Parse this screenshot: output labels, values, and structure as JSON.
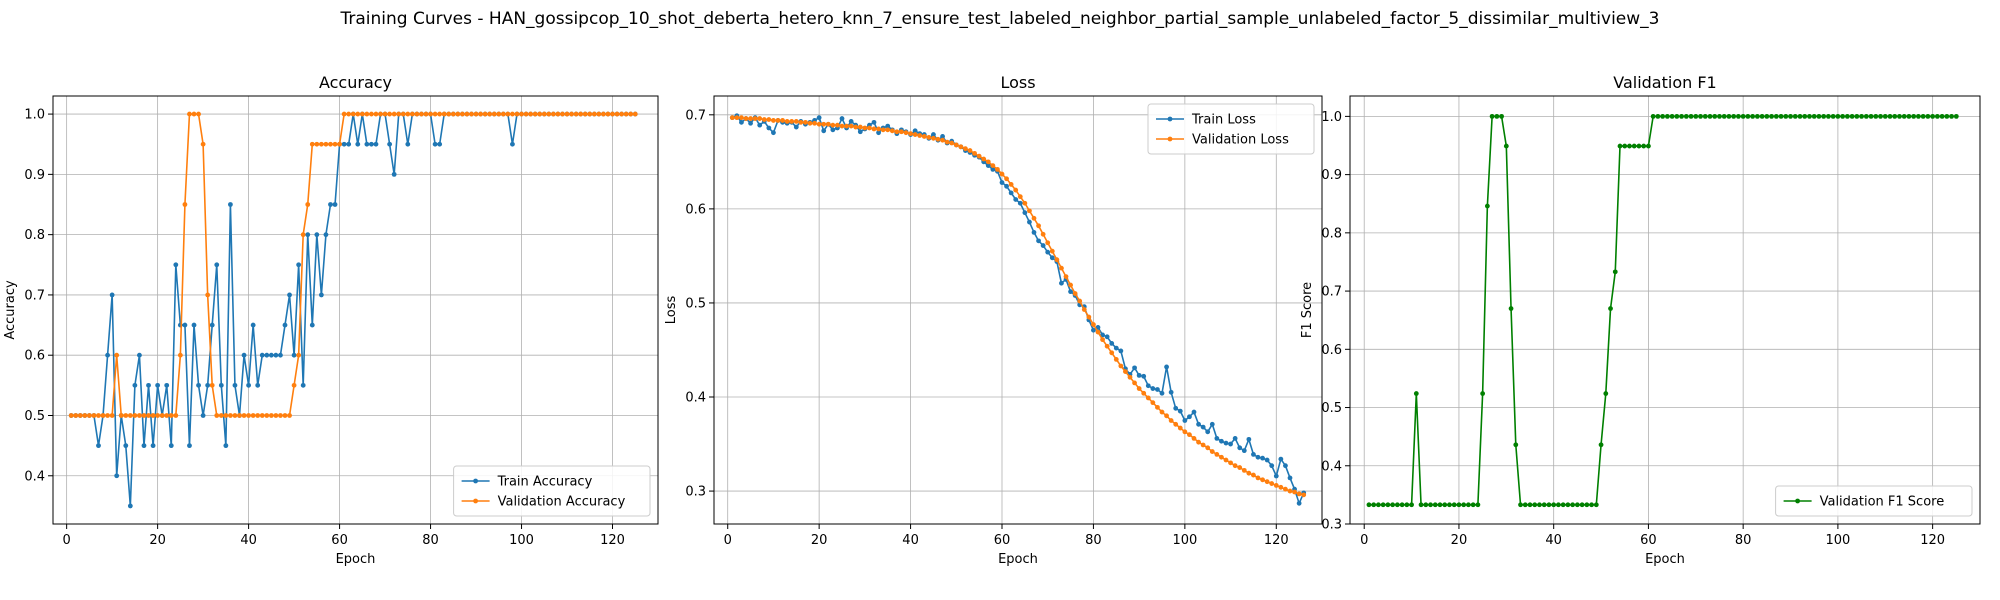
{
  "suptitle": "Training Curves - HAN_gossipcop_10_shot_deberta_hetero_knn_7_ensure_test_labeled_neighbor_partial_sample_unlabeled_factor_5_dissimilar_multiview_3",
  "colors": {
    "train": "#1f77b4",
    "val": "#ff7f0e",
    "f1": "#008000",
    "grid": "#b0b0b0"
  },
  "chart_data": [
    {
      "type": "line",
      "title": "Accuracy",
      "xlabel": "Epoch",
      "ylabel": "Accuracy",
      "xlim": [
        -3,
        130
      ],
      "ylim": [
        0.32,
        1.03
      ],
      "xticks": [
        0,
        20,
        40,
        60,
        80,
        100,
        120
      ],
      "yticks": [
        0.4,
        0.5,
        0.6,
        0.7,
        0.8,
        0.9,
        1.0
      ],
      "ytick_labels": [
        "0.4",
        "0.5",
        "0.6",
        "0.7",
        "0.8",
        "0.9",
        "1.0"
      ],
      "legend_loc": "lower-right",
      "series": [
        {
          "name": "Train Accuracy",
          "color_key": "train",
          "values": [
            0.5,
            0.5,
            0.5,
            0.5,
            0.5,
            0.5,
            0.45,
            0.5,
            0.6,
            0.7,
            0.4,
            0.5,
            0.45,
            0.35,
            0.55,
            0.6,
            0.45,
            0.55,
            0.45,
            0.55,
            0.5,
            0.55,
            0.45,
            0.75,
            0.65,
            0.65,
            0.45,
            0.65,
            0.55,
            0.5,
            0.55,
            0.65,
            0.75,
            0.55,
            0.45,
            0.85,
            0.55,
            0.5,
            0.6,
            0.55,
            0.65,
            0.55,
            0.6,
            0.6,
            0.6,
            0.6,
            0.6,
            0.65,
            0.7,
            0.6,
            0.75,
            0.55,
            0.8,
            0.65,
            0.8,
            0.7,
            0.8,
            0.85,
            0.85,
            0.95,
            0.95,
            0.95,
            1.0,
            0.95,
            1.0,
            0.95,
            0.95,
            0.95,
            1.0,
            1.0,
            0.95,
            0.9,
            1.0,
            1.0,
            0.95,
            1.0,
            1.0,
            1.0,
            1.0,
            1.0,
            0.95,
            0.95,
            1.0,
            1.0,
            1.0,
            1.0,
            1.0,
            1.0,
            1.0,
            1.0,
            1.0,
            1.0,
            1.0,
            1.0,
            1.0,
            1.0,
            1.0,
            0.95,
            1.0,
            1.0,
            1.0,
            1.0,
            1.0,
            1.0,
            1.0,
            1.0,
            1.0,
            1.0,
            1.0,
            1.0,
            1.0,
            1.0,
            1.0,
            1.0,
            1.0,
            1.0,
            1.0,
            1.0,
            1.0,
            1.0,
            1.0,
            1.0,
            1.0,
            1.0,
            1.0
          ]
        },
        {
          "name": "Validation Accuracy",
          "color_key": "val",
          "values": [
            0.5,
            0.5,
            0.5,
            0.5,
            0.5,
            0.5,
            0.5,
            0.5,
            0.5,
            0.5,
            0.6,
            0.5,
            0.5,
            0.5,
            0.5,
            0.5,
            0.5,
            0.5,
            0.5,
            0.5,
            0.5,
            0.5,
            0.5,
            0.5,
            0.6,
            0.85,
            1.0,
            1.0,
            1.0,
            0.95,
            0.7,
            0.55,
            0.5,
            0.5,
            0.5,
            0.5,
            0.5,
            0.5,
            0.5,
            0.5,
            0.5,
            0.5,
            0.5,
            0.5,
            0.5,
            0.5,
            0.5,
            0.5,
            0.5,
            0.55,
            0.6,
            0.8,
            0.85,
            0.95,
            0.95,
            0.95,
            0.95,
            0.95,
            0.95,
            0.95,
            1.0,
            1.0,
            1.0,
            1.0,
            1.0,
            1.0,
            1.0,
            1.0,
            1.0,
            1.0,
            1.0,
            1.0,
            1.0,
            1.0,
            1.0,
            1.0,
            1.0,
            1.0,
            1.0,
            1.0,
            1.0,
            1.0,
            1.0,
            1.0,
            1.0,
            1.0,
            1.0,
            1.0,
            1.0,
            1.0,
            1.0,
            1.0,
            1.0,
            1.0,
            1.0,
            1.0,
            1.0,
            1.0,
            1.0,
            1.0,
            1.0,
            1.0,
            1.0,
            1.0,
            1.0,
            1.0,
            1.0,
            1.0,
            1.0,
            1.0,
            1.0,
            1.0,
            1.0,
            1.0,
            1.0,
            1.0,
            1.0,
            1.0,
            1.0,
            1.0,
            1.0,
            1.0,
            1.0,
            1.0,
            1.0
          ]
        }
      ]
    },
    {
      "type": "line",
      "title": "Loss",
      "xlabel": "Epoch",
      "ylabel": "Loss",
      "xlim": [
        -3,
        130
      ],
      "ylim": [
        0.265,
        0.72
      ],
      "xticks": [
        0,
        20,
        40,
        60,
        80,
        100,
        120
      ],
      "yticks": [
        0.3,
        0.4,
        0.5,
        0.6,
        0.7
      ],
      "ytick_labels": [
        "0.3",
        "0.4",
        "0.5",
        "0.6",
        "0.7"
      ],
      "legend_loc": "upper-right",
      "series": [
        {
          "name": "Train Loss",
          "color_key": "train",
          "values": [
            0.697,
            0.699,
            0.692,
            0.696,
            0.691,
            0.697,
            0.689,
            0.693,
            0.686,
            0.681,
            0.694,
            0.692,
            0.691,
            0.692,
            0.687,
            0.693,
            0.69,
            0.692,
            0.694,
            0.697,
            0.683,
            0.69,
            0.684,
            0.686,
            0.696,
            0.686,
            0.693,
            0.689,
            0.682,
            0.685,
            0.689,
            0.692,
            0.681,
            0.686,
            0.688,
            0.684,
            0.68,
            0.684,
            0.682,
            0.679,
            0.683,
            0.68,
            0.679,
            0.675,
            0.679,
            0.673,
            0.677,
            0.67,
            0.672,
            0.668,
            0.666,
            0.662,
            0.66,
            0.657,
            0.655,
            0.65,
            0.646,
            0.642,
            0.64,
            0.628,
            0.624,
            0.617,
            0.61,
            0.606,
            0.596,
            0.586,
            0.575,
            0.566,
            0.561,
            0.554,
            0.548,
            0.544,
            0.521,
            0.525,
            0.512,
            0.508,
            0.498,
            0.496,
            0.482,
            0.471,
            0.474,
            0.466,
            0.464,
            0.457,
            0.452,
            0.449,
            0.43,
            0.424,
            0.431,
            0.423,
            0.422,
            0.412,
            0.409,
            0.408,
            0.404,
            0.432,
            0.405,
            0.388,
            0.385,
            0.375,
            0.379,
            0.384,
            0.371,
            0.368,
            0.363,
            0.371,
            0.356,
            0.353,
            0.351,
            0.35,
            0.356,
            0.346,
            0.343,
            0.355,
            0.339,
            0.336,
            0.335,
            0.333,
            0.327,
            0.316,
            0.334,
            0.327,
            0.314,
            0.302,
            0.287,
            0.298
          ]
        },
        {
          "name": "Validation Loss",
          "color_key": "val",
          "values": [
            0.697,
            0.697,
            0.697,
            0.696,
            0.696,
            0.696,
            0.696,
            0.695,
            0.695,
            0.694,
            0.694,
            0.694,
            0.693,
            0.693,
            0.693,
            0.692,
            0.692,
            0.691,
            0.691,
            0.69,
            0.69,
            0.69,
            0.689,
            0.689,
            0.688,
            0.688,
            0.688,
            0.687,
            0.687,
            0.686,
            0.686,
            0.685,
            0.685,
            0.684,
            0.684,
            0.683,
            0.682,
            0.682,
            0.681,
            0.68,
            0.679,
            0.678,
            0.677,
            0.676,
            0.675,
            0.674,
            0.673,
            0.671,
            0.67,
            0.668,
            0.666,
            0.664,
            0.662,
            0.659,
            0.656,
            0.653,
            0.65,
            0.646,
            0.642,
            0.637,
            0.632,
            0.626,
            0.62,
            0.613,
            0.606,
            0.598,
            0.59,
            0.582,
            0.573,
            0.564,
            0.555,
            0.546,
            0.537,
            0.528,
            0.519,
            0.51,
            0.502,
            0.493,
            0.485,
            0.477,
            0.469,
            0.461,
            0.454,
            0.447,
            0.44,
            0.433,
            0.427,
            0.421,
            0.415,
            0.409,
            0.404,
            0.399,
            0.394,
            0.389,
            0.384,
            0.38,
            0.375,
            0.371,
            0.367,
            0.363,
            0.36,
            0.356,
            0.352,
            0.349,
            0.346,
            0.342,
            0.339,
            0.336,
            0.333,
            0.33,
            0.327,
            0.325,
            0.322,
            0.319,
            0.317,
            0.314,
            0.312,
            0.31,
            0.308,
            0.306,
            0.304,
            0.302,
            0.3,
            0.299,
            0.297,
            0.296
          ]
        }
      ]
    },
    {
      "type": "line",
      "title": "Validation F1",
      "xlabel": "Epoch",
      "ylabel": "F1 Score",
      "xlim": [
        -3,
        130
      ],
      "ylim": [
        0.3,
        1.035
      ],
      "xticks": [
        0,
        20,
        40,
        60,
        80,
        100,
        120
      ],
      "yticks": [
        0.3,
        0.4,
        0.5,
        0.6,
        0.7,
        0.8,
        0.9,
        1.0
      ],
      "ytick_labels": [
        "0.3",
        "0.4",
        "0.5",
        "0.6",
        "0.7",
        "0.8",
        "0.9",
        "1.0"
      ],
      "legend_loc": "lower-right",
      "series": [
        {
          "name": "Validation F1 Score",
          "color_key": "f1",
          "values": [
            0.333,
            0.333,
            0.333,
            0.333,
            0.333,
            0.333,
            0.333,
            0.333,
            0.333,
            0.333,
            0.524,
            0.333,
            0.333,
            0.333,
            0.333,
            0.333,
            0.333,
            0.333,
            0.333,
            0.333,
            0.333,
            0.333,
            0.333,
            0.333,
            0.524,
            0.846,
            1.0,
            1.0,
            1.0,
            0.949,
            0.67,
            0.436,
            0.333,
            0.333,
            0.333,
            0.333,
            0.333,
            0.333,
            0.333,
            0.333,
            0.333,
            0.333,
            0.333,
            0.333,
            0.333,
            0.333,
            0.333,
            0.333,
            0.333,
            0.436,
            0.524,
            0.67,
            0.733,
            0.949,
            0.949,
            0.949,
            0.949,
            0.949,
            0.949,
            0.949,
            1.0,
            1.0,
            1.0,
            1.0,
            1.0,
            1.0,
            1.0,
            1.0,
            1.0,
            1.0,
            1.0,
            1.0,
            1.0,
            1.0,
            1.0,
            1.0,
            1.0,
            1.0,
            1.0,
            1.0,
            1.0,
            1.0,
            1.0,
            1.0,
            1.0,
            1.0,
            1.0,
            1.0,
            1.0,
            1.0,
            1.0,
            1.0,
            1.0,
            1.0,
            1.0,
            1.0,
            1.0,
            1.0,
            1.0,
            1.0,
            1.0,
            1.0,
            1.0,
            1.0,
            1.0,
            1.0,
            1.0,
            1.0,
            1.0,
            1.0,
            1.0,
            1.0,
            1.0,
            1.0,
            1.0,
            1.0,
            1.0,
            1.0,
            1.0,
            1.0,
            1.0,
            1.0,
            1.0,
            1.0,
            1.0
          ]
        }
      ]
    }
  ]
}
